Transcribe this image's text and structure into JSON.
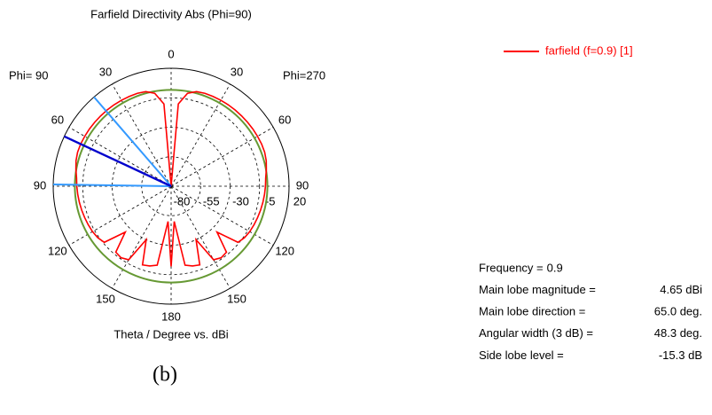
{
  "chart_data": {
    "type": "polar",
    "title": "Farfield Directivity Abs (Phi=90)",
    "xlabel": "Theta / Degree vs. dBi",
    "left_label": "Phi= 90",
    "right_label": "Phi=270",
    "rlim": [
      -80,
      20
    ],
    "rticks": [
      -80,
      -55,
      -30,
      -5,
      20
    ],
    "angle_ticks": [
      0,
      30,
      60,
      90,
      120,
      150,
      180,
      {
        "value": 210,
        "label": "150"
      },
      {
        "value": 240,
        "label": "120"
      },
      {
        "value": 270,
        "label": "90"
      },
      {
        "value": 300,
        "label": "60"
      },
      {
        "value": 330,
        "label": "30"
      }
    ],
    "grid": true,
    "legend": "top-right",
    "series": [
      {
        "name": "farfield (f=0.9) [1]",
        "color": "#ff0000",
        "x": [
          0,
          5,
          10,
          15,
          20,
          25,
          30,
          35,
          40,
          45,
          50,
          55,
          60,
          65,
          70,
          75,
          80,
          85,
          90,
          95,
          100,
          105,
          110,
          115,
          120,
          125,
          130,
          135,
          140,
          145,
          150,
          155,
          160,
          165,
          170,
          175,
          180,
          185,
          190,
          195,
          200,
          205,
          210,
          215,
          220,
          225,
          230,
          235,
          240,
          245,
          250,
          255,
          260,
          265,
          270,
          275,
          280,
          285,
          290,
          295,
          300,
          305,
          310,
          315,
          320,
          325,
          330,
          335,
          340,
          345,
          350,
          355,
          360
        ],
        "values": [
          -80,
          -10,
          0,
          3,
          3.8,
          4,
          4.2,
          4.3,
          4.4,
          4.4,
          4.5,
          4.6,
          4.6,
          4.65,
          4.4,
          3.5,
          2,
          0.5,
          0,
          -0.5,
          -1,
          -1.5,
          -2,
          -2.5,
          -3,
          -4,
          -6,
          -25,
          -7,
          -6,
          -8,
          -30,
          -9,
          -10,
          -12,
          -50,
          -12,
          -50,
          -12,
          -10,
          -9,
          -30,
          -8,
          -6,
          -7,
          -25,
          -6,
          -4,
          -3,
          -2.5,
          -2,
          -1.5,
          -1,
          -0.5,
          0,
          0.5,
          2,
          3.5,
          4.4,
          4.65,
          4.6,
          4.6,
          4.5,
          4.4,
          4.4,
          4.3,
          4.2,
          4,
          3.8,
          3,
          0,
          -10,
          -80
        ]
      }
    ],
    "beam": {
      "line_color": "#0000cc",
      "width_color": "#3399ff",
      "level_color": "#669933"
    },
    "info": [
      {
        "label": "Frequency =",
        "value": 0.9
      },
      {
        "label": "Main lobe magnitude =",
        "value": 4.65,
        "value_label": "4.65 dBi"
      },
      {
        "label": "Main lobe direction =",
        "value": 65,
        "value_label": "65.0 deg."
      },
      {
        "label": "Angular width (3 dB) =",
        "value": 48.3,
        "value_label": "48.3 deg."
      },
      {
        "label": "Side lobe level =",
        "value": -15.3,
        "value_label": "-15.3 dB"
      }
    ]
  },
  "caption": "(b)"
}
